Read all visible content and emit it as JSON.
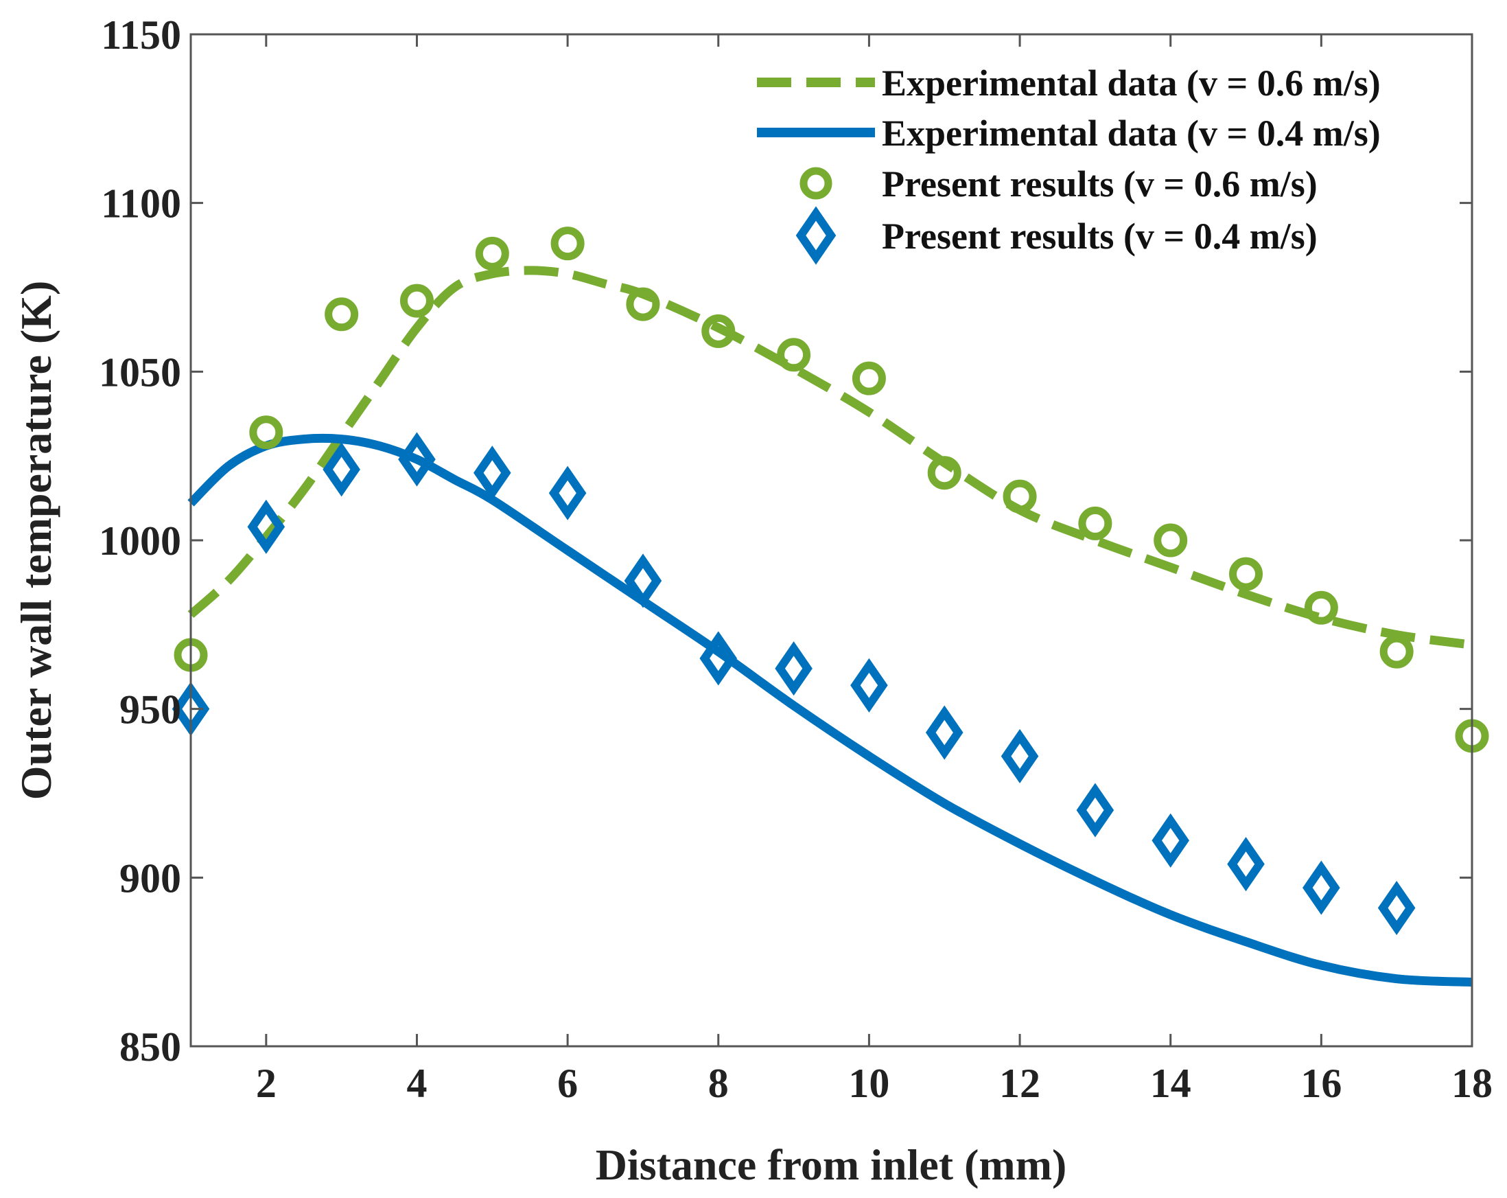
{
  "chart_data": {
    "type": "line",
    "xlabel": "Distance from inlet (mm)",
    "ylabel": "Outer wall temperature (K)",
    "xlim": [
      1,
      18
    ],
    "ylim": [
      850,
      1150
    ],
    "xticks": [
      2,
      4,
      6,
      8,
      10,
      12,
      14,
      16,
      18
    ],
    "yticks": [
      850,
      900,
      950,
      1000,
      1050,
      1100,
      1150
    ],
    "grid": false,
    "legend_position": "top-right",
    "series": [
      {
        "name": "Experimental data (v = 0.6 m/s)",
        "style": "dashed-line",
        "color": "#77AC30",
        "x": [
          1,
          1.5,
          2,
          2.5,
          3,
          3.5,
          4,
          4.5,
          5,
          5.5,
          6,
          6.5,
          7,
          8,
          9,
          10,
          11,
          12,
          13,
          14,
          15,
          16,
          17,
          18
        ],
        "y": [
          978,
          988,
          1001,
          1015,
          1031,
          1047,
          1063,
          1075,
          1079,
          1080,
          1079,
          1076,
          1073,
          1063,
          1051,
          1038,
          1023,
          1009,
          1000,
          992,
          984,
          977,
          972,
          969
        ]
      },
      {
        "name": "Experimental data (v = 0.4 m/s)",
        "style": "solid-line",
        "color": "#0072BD",
        "x": [
          1,
          1.5,
          2,
          2.5,
          3,
          3.5,
          4,
          4.5,
          5,
          6,
          7,
          8,
          9,
          10,
          11,
          12,
          13,
          14,
          15,
          16,
          17,
          18
        ],
        "y": [
          1011,
          1022,
          1028,
          1030,
          1030,
          1028,
          1024,
          1018,
          1012,
          997,
          982,
          967,
          951,
          936,
          922,
          910,
          899,
          889,
          881,
          874,
          870,
          869
        ]
      },
      {
        "name": "Present results (v = 0.6 m/s)",
        "style": "circle-markers",
        "color": "#77AC30",
        "x": [
          1,
          2,
          3,
          4,
          5,
          6,
          7,
          8,
          9,
          10,
          11,
          12,
          13,
          14,
          15,
          16,
          17,
          18
        ],
        "y": [
          966,
          1032,
          1067,
          1071,
          1085,
          1088,
          1070,
          1062,
          1055,
          1048,
          1020,
          1013,
          1005,
          1000,
          990,
          980,
          967,
          942
        ]
      },
      {
        "name": "Present results (v = 0.4 m/s)",
        "style": "diamond-markers",
        "color": "#0072BD",
        "x": [
          1,
          2,
          3,
          4,
          5,
          6,
          7,
          8,
          9,
          10,
          11,
          12,
          13,
          14,
          15,
          16,
          17
        ],
        "y": [
          950,
          1004,
          1021,
          1024,
          1020,
          1014,
          988,
          965,
          962,
          957,
          943,
          936,
          920,
          911,
          904,
          897,
          891
        ]
      }
    ]
  }
}
